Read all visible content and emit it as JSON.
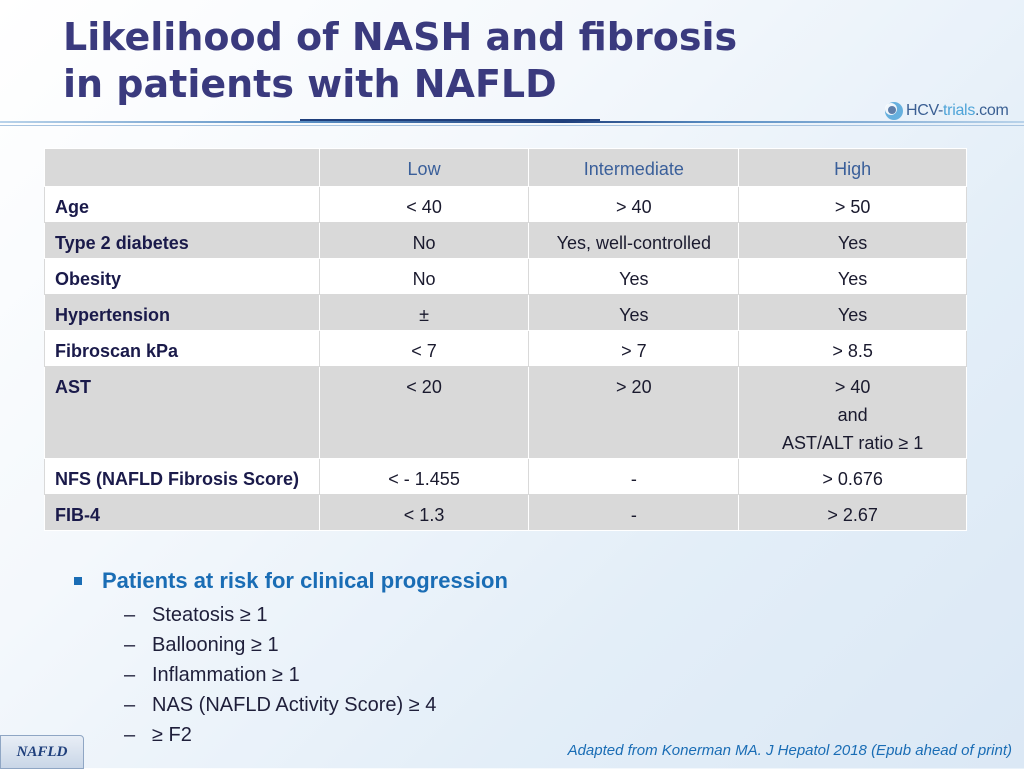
{
  "title": {
    "line1": "Likelihood of NASH and fibrosis",
    "line2": "in patients with NAFLD"
  },
  "logo": {
    "main": "HCV-",
    "accent": "trials",
    "suffix": ".com"
  },
  "table": {
    "headers": [
      "",
      "Low",
      "Intermediate",
      "High"
    ],
    "rows": [
      {
        "label": "Age",
        "low": "< 40",
        "intermediate": "> 40",
        "high": "> 50"
      },
      {
        "label": "Type 2 diabetes",
        "low": "No",
        "intermediate": "Yes, well-controlled",
        "high": "Yes"
      },
      {
        "label": "Obesity",
        "low": "No",
        "intermediate": "Yes",
        "high": "Yes"
      },
      {
        "label": "Hypertension",
        "low": "±",
        "intermediate": "Yes",
        "high": "Yes"
      },
      {
        "label": "Fibroscan kPa",
        "low": "< 7",
        "intermediate": "> 7",
        "high": "> 8.5"
      },
      {
        "label": "AST",
        "low": "< 20",
        "intermediate": "> 20",
        "high_lines": [
          "> 40",
          "and",
          "AST/ALT ratio ≥ 1"
        ]
      },
      {
        "label": "NFS (NAFLD Fibrosis Score)",
        "low": "< - 1.455",
        "intermediate": "-",
        "high": "> 0.676"
      },
      {
        "label": "FIB-4",
        "low": "< 1.3",
        "intermediate": "-",
        "high": "> 2.67"
      }
    ]
  },
  "bullets": {
    "heading": "Patients at risk for clinical progression",
    "dash": "–",
    "items": [
      "Steatosis ≥ 1",
      "Ballooning ≥ 1",
      "Inflammation ≥ 1",
      "NAS (NAFLD Activity Score) ≥ 4",
      "≥ F2"
    ]
  },
  "tag": "NAFLD",
  "source": "Adapted from Konerman MA. J Hepatol 2018 (Epub ahead of print)"
}
